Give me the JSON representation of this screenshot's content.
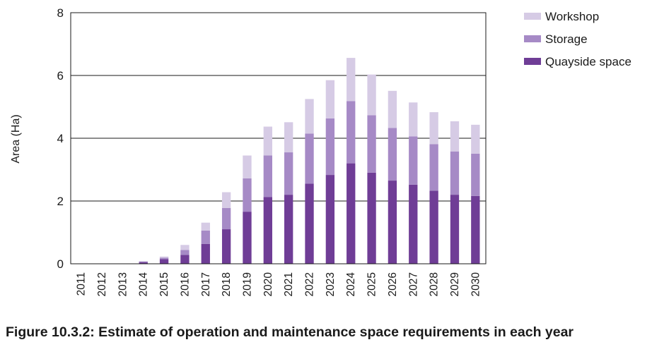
{
  "figure": {
    "caption": "Figure 10.3.2: Estimate of operation and maintenance space requirements in each year"
  },
  "chart_data": {
    "type": "bar",
    "stacked": true,
    "title": "",
    "xlabel": "",
    "ylabel": "Area (Ha)",
    "ylim": [
      0,
      8
    ],
    "yticks": [
      0,
      2,
      4,
      6,
      8
    ],
    "grid": "horizontal",
    "legend_position": "top-right",
    "categories": [
      "2011",
      "2012",
      "2013",
      "2014",
      "2015",
      "2016",
      "2017",
      "2018",
      "2019",
      "2020",
      "2021",
      "2022",
      "2023",
      "2024",
      "2025",
      "2026",
      "2027",
      "2028",
      "2029",
      "2030"
    ],
    "series": [
      {
        "name": "Quayside space",
        "color": "#6f3d96",
        "values": [
          0,
          0,
          0,
          0.05,
          0.15,
          0.28,
          0.63,
          1.1,
          1.66,
          2.13,
          2.2,
          2.55,
          2.83,
          3.2,
          2.9,
          2.65,
          2.52,
          2.33,
          2.2,
          2.16
        ]
      },
      {
        "name": "Storage",
        "color": "#a68ac6",
        "values": [
          0,
          0,
          0,
          0.02,
          0.04,
          0.16,
          0.43,
          0.68,
          1.06,
          1.32,
          1.35,
          1.6,
          1.8,
          1.98,
          1.83,
          1.68,
          1.54,
          1.48,
          1.38,
          1.35
        ]
      },
      {
        "name": "Workshop",
        "color": "#d6cbe5",
        "values": [
          0,
          0,
          0,
          0.02,
          0.04,
          0.16,
          0.25,
          0.5,
          0.73,
          0.92,
          0.96,
          1.1,
          1.22,
          1.38,
          1.3,
          1.18,
          1.08,
          1.02,
          0.96,
          0.92
        ]
      }
    ]
  }
}
